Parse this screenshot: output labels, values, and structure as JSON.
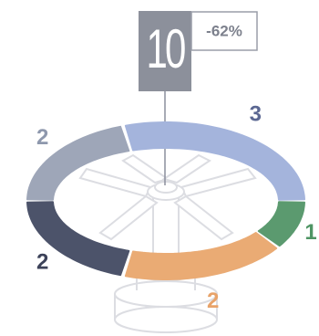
{
  "chart_data": {
    "type": "donut",
    "total": 10,
    "annotation": "-62%",
    "values": [
      2,
      3,
      1,
      2,
      2
    ],
    "colors": [
      "#9ea6b8",
      "#a4b4dc",
      "#5b9a6f",
      "#eaab74",
      "#4c536a"
    ],
    "label_colors": [
      "#8e98ad",
      "#5b6792",
      "#4f9564",
      "#e8a36a",
      "#3c4259"
    ]
  }
}
